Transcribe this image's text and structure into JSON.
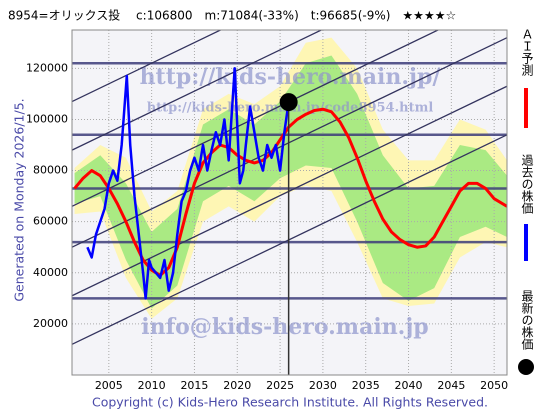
{
  "chart_data": {
    "type": "line",
    "title": "8954=オリックス投　 c:106800　m:71084(-33%)　t:96685(-9%)　★★★★☆",
    "generated": "Generated on Monday 2026/1/5.",
    "copyright": "Copyright (c) Kids-Hero Research Institute. All Rights Reserved.",
    "watermarks": [
      "http://kids-hero.main.jp/",
      "http://kids-hero.main.jp/code8954.html",
      "info@kids-hero.main.jp"
    ],
    "xlim": [
      2000.7,
      2051.5
    ],
    "xticks": [
      2005,
      2010,
      2015,
      2020,
      2025,
      2030,
      2035,
      2040,
      2045,
      2050
    ],
    "ylim": [
      0,
      135000
    ],
    "yticks": [
      20000,
      40000,
      60000,
      80000,
      100000,
      120000
    ],
    "grid": true,
    "hlines": [
      122000,
      94000,
      73000,
      52000,
      30000
    ],
    "trend_lines": [
      {
        "start": 107000,
        "end": 189000
      },
      {
        "start": 88000,
        "end": 170000
      },
      {
        "start": 66000,
        "end": 148000
      },
      {
        "start": 50000,
        "end": 132000
      },
      {
        "start": 31000,
        "end": 113000
      },
      {
        "start": 12000,
        "end": 94000
      }
    ],
    "bands": [
      {
        "color": "#fff6a8",
        "x": [
          2001,
          2004,
          2007,
          2010,
          2013,
          2016,
          2019,
          2022,
          2025,
          2028,
          2031,
          2034,
          2037,
          2040,
          2043,
          2046,
          2049,
          2051.5
        ],
        "upper": [
          81000,
          90000,
          85000,
          64000,
          72000,
          104000,
          110000,
          106000,
          113000,
          130000,
          132000,
          120000,
          96000,
          84000,
          84000,
          100000,
          96000,
          84000
        ],
        "lower": [
          63000,
          64000,
          38000,
          22000,
          30000,
          60000,
          66000,
          60000,
          70000,
          74000,
          72000,
          52000,
          30000,
          27000,
          28000,
          46000,
          52000,
          50000
        ]
      },
      {
        "color": "#9be87a",
        "x": [
          2001,
          2004,
          2007,
          2010,
          2013,
          2016,
          2019,
          2022,
          2025,
          2028,
          2031,
          2034,
          2037,
          2040,
          2043,
          2046,
          2049,
          2051.5
        ],
        "upper": [
          79000,
          86000,
          75000,
          56000,
          65000,
          98000,
          104000,
          98000,
          107000,
          122000,
          125000,
          110000,
          86000,
          73000,
          74000,
          90000,
          88000,
          78000
        ],
        "lower": [
          67000,
          70000,
          45000,
          26000,
          35000,
          68000,
          74000,
          68000,
          77000,
          82000,
          81000,
          60000,
          36000,
          29000,
          34000,
          54000,
          58000,
          54000
        ]
      }
    ],
    "series": [
      {
        "name": "ＡＩ予測",
        "color": "#ff0000",
        "x": [
          2001,
          2002,
          2003,
          2004,
          2005,
          2006,
          2007,
          2008,
          2009,
          2010,
          2011,
          2012,
          2013,
          2014,
          2015,
          2016,
          2017,
          2018,
          2019,
          2020,
          2021,
          2022,
          2023,
          2024,
          2025,
          2026,
          2027,
          2028,
          2029,
          2030,
          2031,
          2032,
          2033,
          2034,
          2035,
          2036,
          2037,
          2038,
          2039,
          2040,
          2041,
          2042,
          2043,
          2044,
          2045,
          2046,
          2047,
          2048,
          2049,
          2050,
          2051.5
        ],
        "values": [
          73000,
          77000,
          80000,
          78000,
          73000,
          67000,
          60000,
          52000,
          45000,
          41000,
          39000,
          42000,
          50000,
          63000,
          75000,
          83000,
          87000,
          90000,
          89000,
          86000,
          84000,
          83000,
          84000,
          87000,
          92000,
          97000,
          100000,
          102000,
          103500,
          104000,
          103000,
          99000,
          93000,
          85000,
          76000,
          68000,
          61000,
          56000,
          53000,
          51000,
          50000,
          50500,
          54000,
          60000,
          66000,
          72000,
          75000,
          75000,
          73000,
          69000,
          66000
        ]
      },
      {
        "name": "過去の株価",
        "color": "#0000ff",
        "x": [
          2002.5,
          2003,
          2003.5,
          2004,
          2004.5,
          2005,
          2005.5,
          2006,
          2006.5,
          2007.1,
          2007.5,
          2008,
          2008.5,
          2009,
          2009.3,
          2009.7,
          2010,
          2010.5,
          2011,
          2011.5,
          2012,
          2012.5,
          2013,
          2013.5,
          2014,
          2014.5,
          2015,
          2015.5,
          2016,
          2016.5,
          2017,
          2017.5,
          2018,
          2018.5,
          2019,
          2019.7,
          2020.3,
          2020.7,
          2021,
          2021.5,
          2022,
          2022.5,
          2023,
          2023.5,
          2024,
          2024.5,
          2025,
          2025.5,
          2026
        ],
        "values": [
          50000,
          46000,
          55000,
          60000,
          65000,
          75000,
          80000,
          76000,
          90000,
          117000,
          90000,
          70000,
          55000,
          40000,
          30000,
          45000,
          42000,
          40000,
          38000,
          45000,
          33000,
          40000,
          55000,
          68000,
          72000,
          80000,
          85000,
          80000,
          90000,
          80000,
          88000,
          95000,
          90000,
          100000,
          84000,
          120000,
          75000,
          80000,
          90000,
          105000,
          95000,
          85000,
          80000,
          90000,
          85000,
          90000,
          80000,
          95000,
          106800
        ]
      },
      {
        "name": "最新の株価",
        "color": "#000000",
        "x": [
          2026
        ],
        "values": [
          106800
        ]
      }
    ]
  }
}
